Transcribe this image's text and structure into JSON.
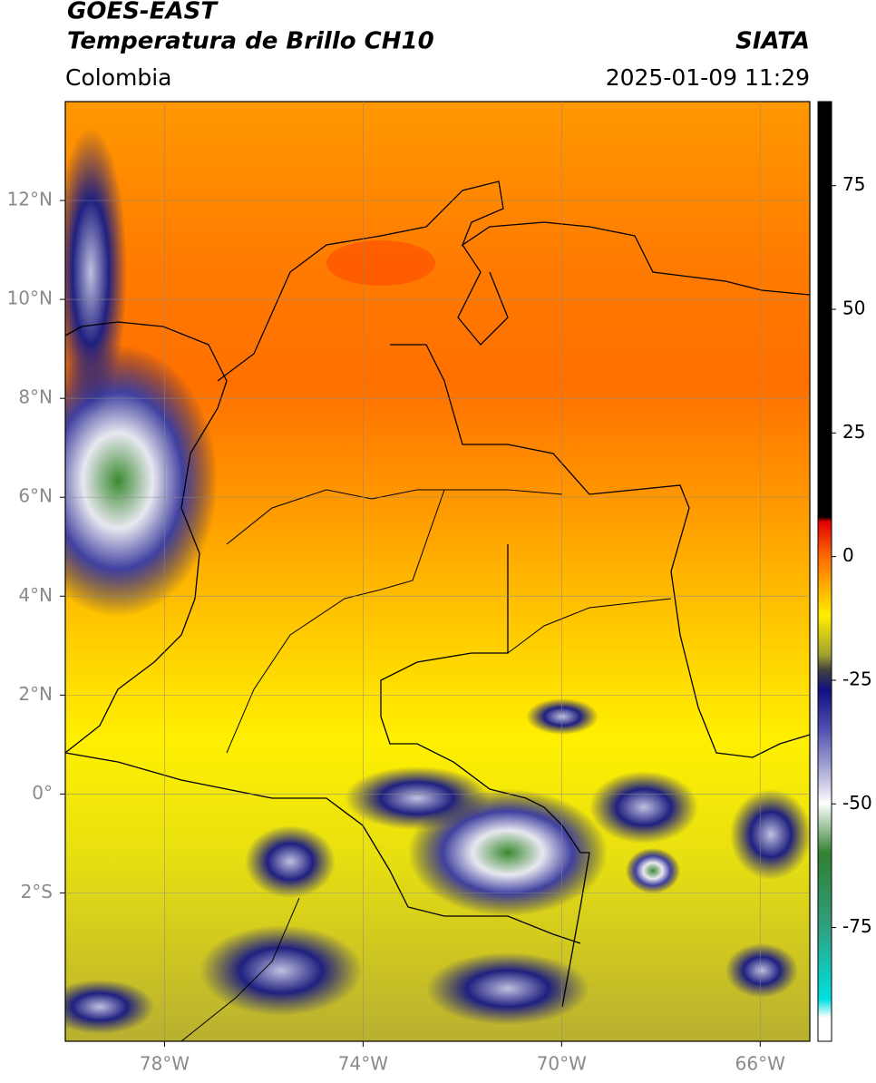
{
  "header": {
    "title": "GOES-EAST",
    "subtitle": "Temperatura de Brillo CH10",
    "region": "Colombia",
    "source": "SIATA",
    "datetime": "2025-01-09 11:29"
  },
  "map": {
    "xlim": [
      -80,
      -65
    ],
    "ylim": [
      -5,
      14
    ],
    "xticks": [
      {
        "value": -78,
        "label": "78°W"
      },
      {
        "value": -74,
        "label": "74°W"
      },
      {
        "value": -70,
        "label": "70°W"
      },
      {
        "value": -66,
        "label": "66°W"
      }
    ],
    "yticks": [
      {
        "value": 12,
        "label": "12°N"
      },
      {
        "value": 10,
        "label": "10°N"
      },
      {
        "value": 8,
        "label": "8°N"
      },
      {
        "value": 6,
        "label": "6°N"
      },
      {
        "value": 4,
        "label": "4°N"
      },
      {
        "value": 2,
        "label": "2°N"
      },
      {
        "value": 0,
        "label": "0°"
      },
      {
        "value": -2,
        "label": "2°S"
      }
    ],
    "grid": true
  },
  "colorbar": {
    "lim": [
      -98,
      92
    ],
    "ticks": [
      75,
      50,
      25,
      0,
      -25,
      -50,
      -75
    ]
  }
}
